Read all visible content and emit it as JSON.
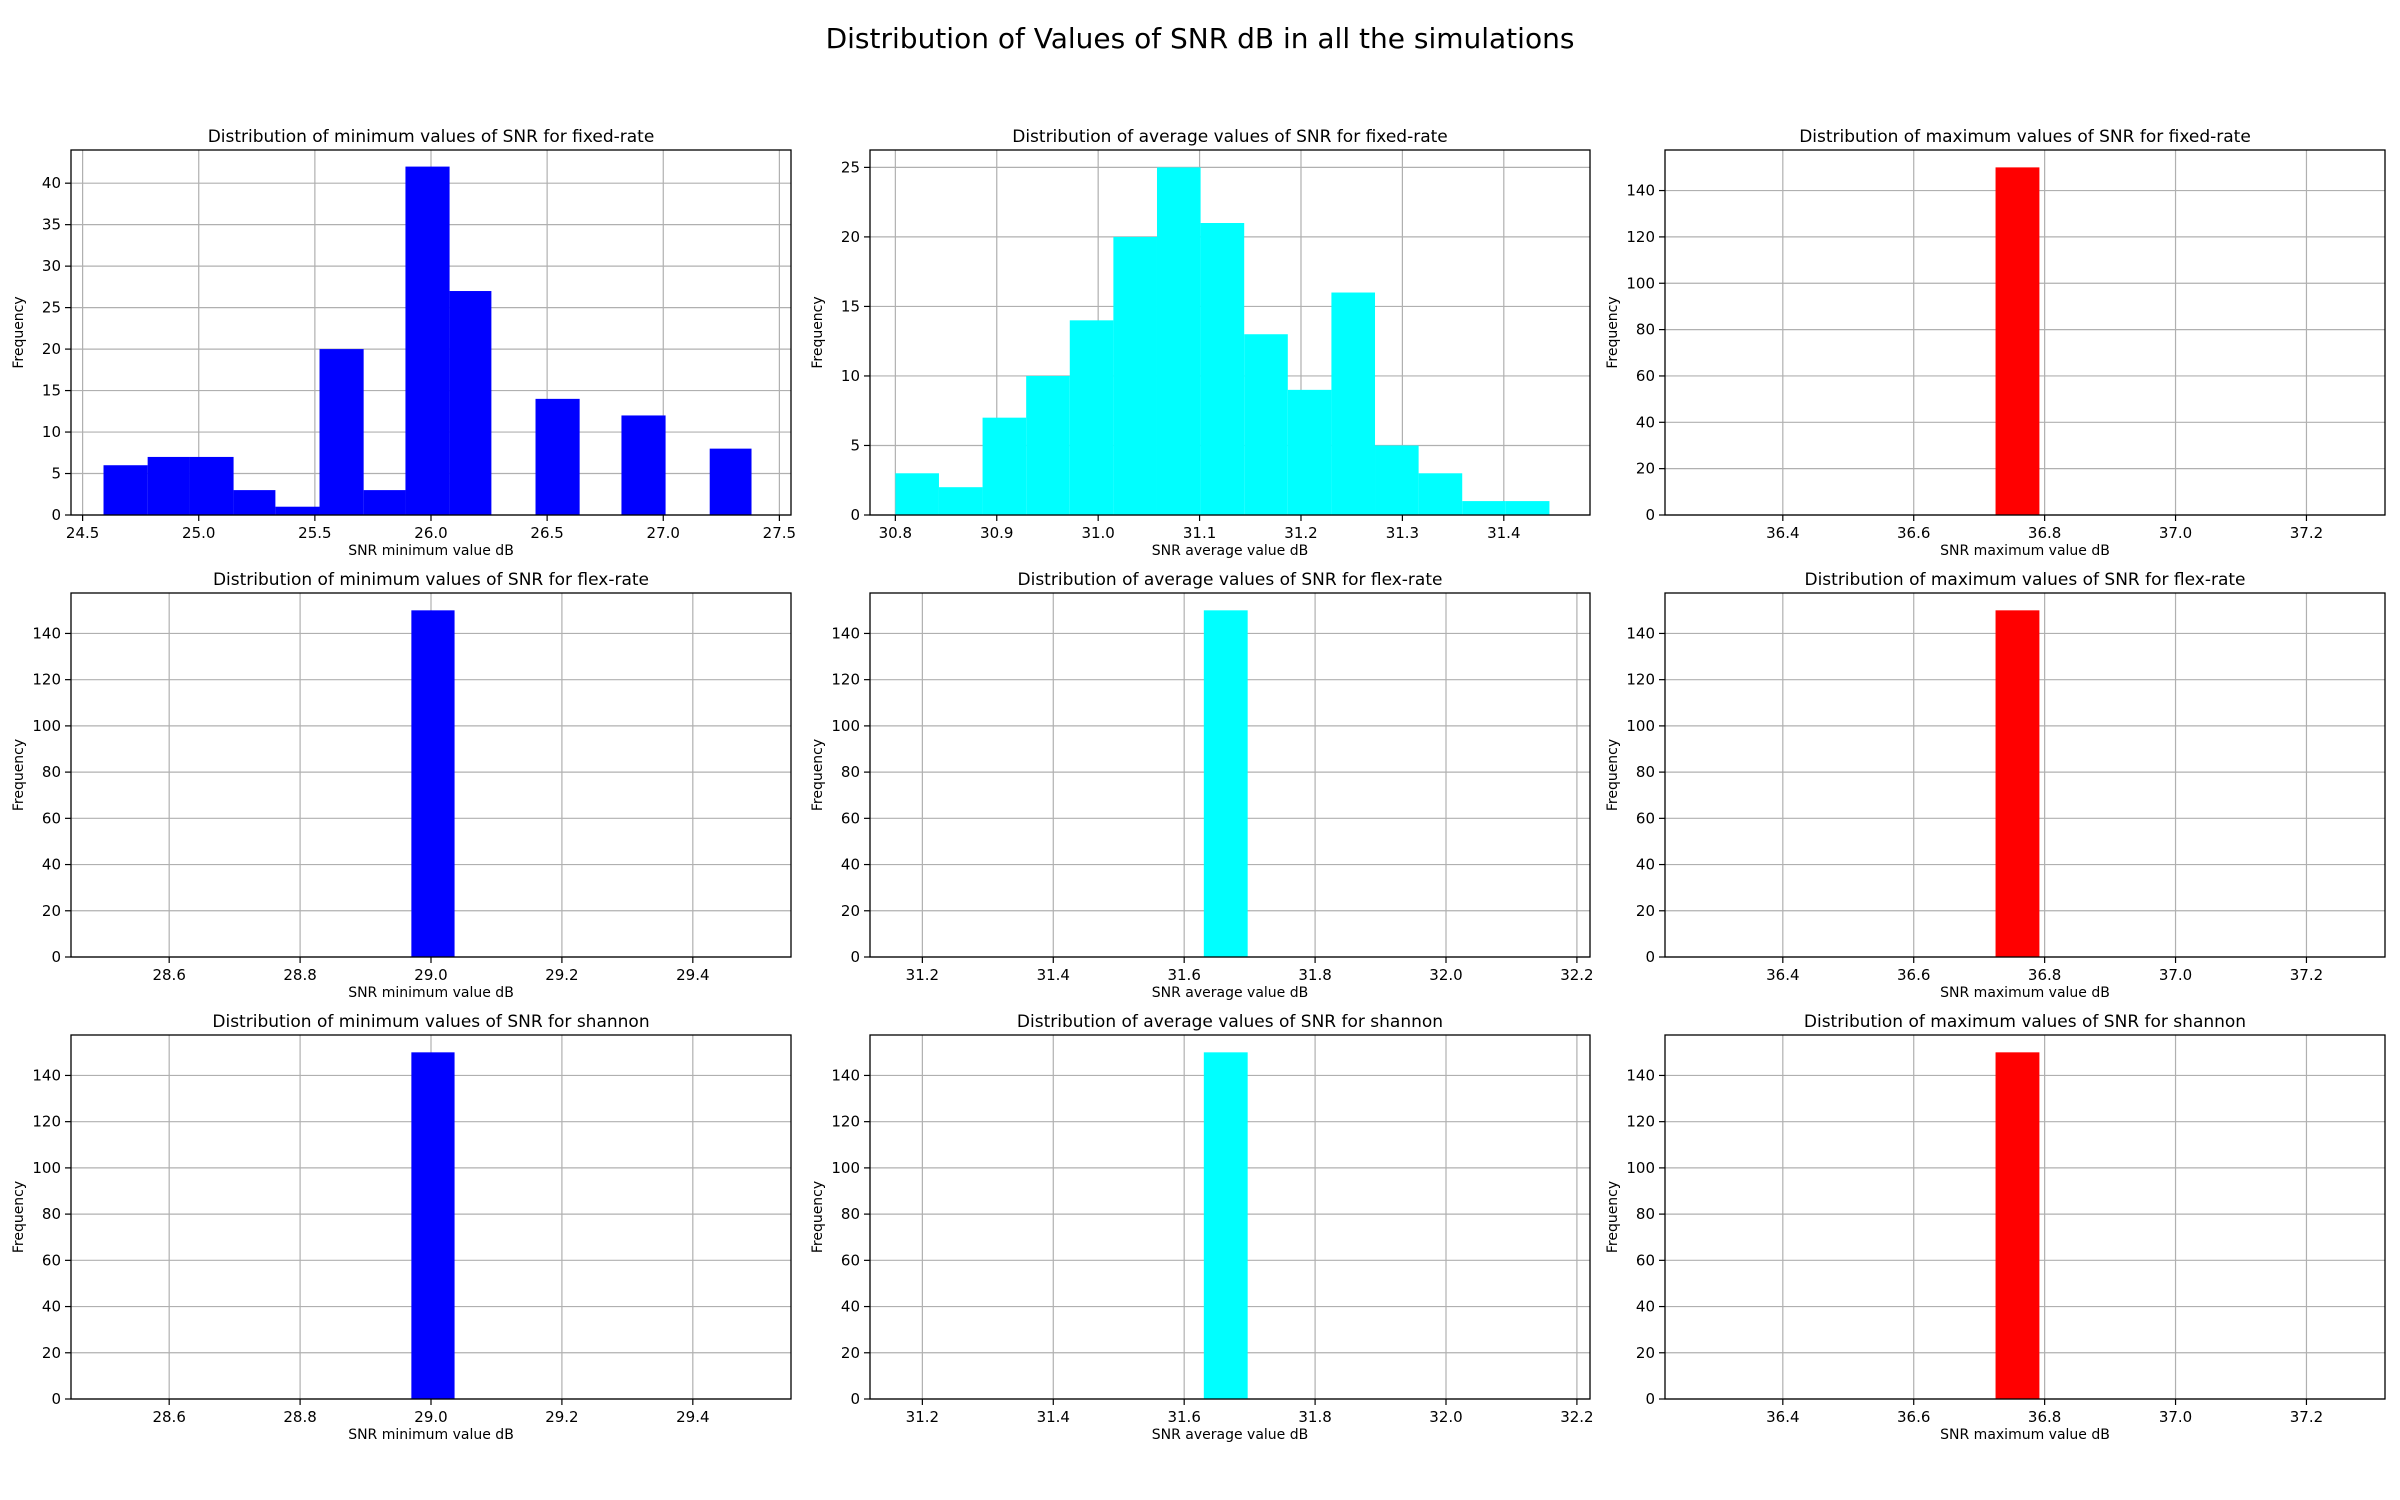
{
  "figure": {
    "suptitle": "Distribution of Values of SNR dB in all the simulations"
  },
  "chart_data": [
    {
      "type": "bar",
      "title": "Distribution of minimum values of SNR for fixed-rate",
      "xlabel": "SNR minimum value dB",
      "ylabel": "Frequency",
      "color": "#0000ff",
      "xlim": [
        24.45,
        27.55
      ],
      "ylim": [
        0,
        44
      ],
      "xticks": [
        24.5,
        25.0,
        25.5,
        26.0,
        26.5,
        27.0,
        27.5
      ],
      "xtick_labels": [
        "24.5",
        "25.0",
        "25.5",
        "26.0",
        "26.5",
        "27.0",
        "27.5"
      ],
      "yticks": [
        0,
        5,
        10,
        15,
        20,
        25,
        30,
        35,
        40
      ],
      "bin_edges": [
        24.59,
        24.78,
        24.96,
        25.15,
        25.33,
        25.52,
        25.71,
        25.89,
        26.08,
        26.26,
        26.45,
        26.64,
        26.82,
        27.01,
        27.2,
        27.38
      ],
      "values": [
        6,
        7,
        7,
        3,
        1,
        20,
        3,
        42,
        27,
        0,
        14,
        0,
        12,
        0,
        8
      ],
      "grid": true
    },
    {
      "type": "bar",
      "title": "Distribution of average values of SNR for fixed-rate",
      "xlabel": "SNR average value dB",
      "ylabel": "Frequency",
      "color": "#00ffff",
      "xlim": [
        30.775,
        31.485
      ],
      "ylim": [
        0,
        26.25
      ],
      "xticks": [
        30.8,
        30.9,
        31.0,
        31.1,
        31.2,
        31.3,
        31.4
      ],
      "xtick_labels": [
        "30.8",
        "30.9",
        "31.0",
        "31.1",
        "31.2",
        "31.3",
        "31.4"
      ],
      "yticks": [
        0,
        5,
        10,
        15,
        20,
        25
      ],
      "bin_edges": [
        30.8,
        30.843,
        30.886,
        30.929,
        30.972,
        31.015,
        31.058,
        31.101,
        31.144,
        31.187,
        31.23,
        31.273,
        31.316,
        31.359,
        31.402,
        31.445
      ],
      "values": [
        3,
        2,
        7,
        10,
        14,
        20,
        25,
        21,
        13,
        9,
        16,
        5,
        3,
        1,
        1
      ],
      "grid": true
    },
    {
      "type": "bar",
      "title": "Distribution of maximum values of SNR  for fixed-rate",
      "xlabel": "SNR maximum value dB",
      "ylabel": "Frequency",
      "color": "#ff0000",
      "xlim": [
        36.22,
        37.32
      ],
      "ylim": [
        0,
        157.5
      ],
      "xticks": [
        36.4,
        36.6,
        36.8,
        37.0,
        37.2
      ],
      "xtick_labels": [
        "36.4",
        "36.6",
        "36.8",
        "37.0",
        "37.2"
      ],
      "yticks": [
        0,
        20,
        40,
        60,
        80,
        100,
        120,
        140
      ],
      "bin_edges": [
        36.725,
        36.792
      ],
      "values": [
        150
      ],
      "grid": true
    },
    {
      "type": "bar",
      "title": "Distribution of minimum values of SNR for flex-rate",
      "xlabel": "SNR minimum value dB",
      "ylabel": "Frequency",
      "color": "#0000ff",
      "xlim": [
        28.45,
        29.55
      ],
      "ylim": [
        0,
        157.5
      ],
      "xticks": [
        28.6,
        28.8,
        29.0,
        29.2,
        29.4
      ],
      "xtick_labels": [
        "28.6",
        "28.8",
        "29.0",
        "29.2",
        "29.4"
      ],
      "yticks": [
        0,
        20,
        40,
        60,
        80,
        100,
        120,
        140
      ],
      "bin_edges": [
        28.97,
        29.036
      ],
      "values": [
        150
      ],
      "grid": true
    },
    {
      "type": "bar",
      "title": "Distribution of average values of SNR for flex-rate",
      "xlabel": "SNR average value dB",
      "ylabel": "Frequency",
      "color": "#00ffff",
      "xlim": [
        31.12,
        32.22
      ],
      "ylim": [
        0,
        157.5
      ],
      "xticks": [
        31.2,
        31.4,
        31.6,
        31.8,
        32.0,
        32.2
      ],
      "xtick_labels": [
        "31.2",
        "31.4",
        "31.6",
        "31.8",
        "32.0",
        "32.2"
      ],
      "yticks": [
        0,
        20,
        40,
        60,
        80,
        100,
        120,
        140
      ],
      "bin_edges": [
        31.63,
        31.697
      ],
      "values": [
        150
      ],
      "grid": true
    },
    {
      "type": "bar",
      "title": "Distribution of maximum values of SNR  for flex-rate",
      "xlabel": "SNR maximum value dB",
      "ylabel": "Frequency",
      "color": "#ff0000",
      "xlim": [
        36.22,
        37.32
      ],
      "ylim": [
        0,
        157.5
      ],
      "xticks": [
        36.4,
        36.6,
        36.8,
        37.0,
        37.2
      ],
      "xtick_labels": [
        "36.4",
        "36.6",
        "36.8",
        "37.0",
        "37.2"
      ],
      "yticks": [
        0,
        20,
        40,
        60,
        80,
        100,
        120,
        140
      ],
      "bin_edges": [
        36.725,
        36.792
      ],
      "values": [
        150
      ],
      "grid": true
    },
    {
      "type": "bar",
      "title": "Distribution of minimum values of SNR for shannon",
      "xlabel": "SNR minimum value dB",
      "ylabel": "Frequency",
      "color": "#0000ff",
      "xlim": [
        28.45,
        29.55
      ],
      "ylim": [
        0,
        157.5
      ],
      "xticks": [
        28.6,
        28.8,
        29.0,
        29.2,
        29.4
      ],
      "xtick_labels": [
        "28.6",
        "28.8",
        "29.0",
        "29.2",
        "29.4"
      ],
      "yticks": [
        0,
        20,
        40,
        60,
        80,
        100,
        120,
        140
      ],
      "bin_edges": [
        28.97,
        29.036
      ],
      "values": [
        150
      ],
      "grid": true
    },
    {
      "type": "bar",
      "title": "Distribution of average values of SNR for shannon",
      "xlabel": "SNR average value dB",
      "ylabel": "Frequency",
      "color": "#00ffff",
      "xlim": [
        31.12,
        32.22
      ],
      "ylim": [
        0,
        157.5
      ],
      "xticks": [
        31.2,
        31.4,
        31.6,
        31.8,
        32.0,
        32.2
      ],
      "xtick_labels": [
        "31.2",
        "31.4",
        "31.6",
        "31.8",
        "32.0",
        "32.2"
      ],
      "yticks": [
        0,
        20,
        40,
        60,
        80,
        100,
        120,
        140
      ],
      "bin_edges": [
        31.63,
        31.697
      ],
      "values": [
        150
      ],
      "grid": true
    },
    {
      "type": "bar",
      "title": "Distribution of maximum values of SNR  for shannon",
      "xlabel": "SNR maximum value dB",
      "ylabel": "Frequency",
      "color": "#ff0000",
      "xlim": [
        36.22,
        37.32
      ],
      "ylim": [
        0,
        157.5
      ],
      "xticks": [
        36.4,
        36.6,
        36.8,
        37.0,
        37.2
      ],
      "xtick_labels": [
        "36.4",
        "36.6",
        "36.8",
        "37.0",
        "37.2"
      ],
      "yticks": [
        0,
        20,
        40,
        60,
        80,
        100,
        120,
        140
      ],
      "bin_edges": [
        36.725,
        36.792
      ],
      "values": [
        150
      ],
      "grid": true
    }
  ]
}
